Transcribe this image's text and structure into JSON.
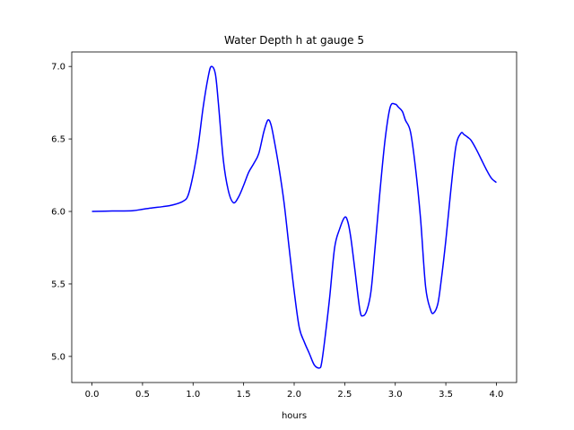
{
  "chart_data": {
    "type": "line",
    "title": "Water Depth h at gauge 5",
    "xlabel": "hours",
    "ylabel": "",
    "xlim": [
      -0.2,
      4.2
    ],
    "ylim": [
      4.82,
      7.1
    ],
    "xticks": [
      0.0,
      0.5,
      1.0,
      1.5,
      2.0,
      2.5,
      3.0,
      3.5,
      4.0
    ],
    "xtick_labels": [
      "0.0",
      "0.5",
      "1.0",
      "1.5",
      "2.0",
      "2.5",
      "3.0",
      "3.5",
      "4.0"
    ],
    "yticks": [
      5.0,
      5.5,
      6.0,
      6.5,
      7.0
    ],
    "ytick_labels": [
      "5.0",
      "5.5",
      "6.0",
      "6.5",
      "7.0"
    ],
    "grid": false,
    "legend": "none",
    "series": [
      {
        "color": "#0000ff",
        "x": [
          0.0,
          0.2,
          0.4,
          0.5,
          0.6,
          0.7,
          0.8,
          0.9,
          0.95,
          1.0,
          1.05,
          1.1,
          1.15,
          1.18,
          1.22,
          1.25,
          1.3,
          1.35,
          1.4,
          1.45,
          1.5,
          1.55,
          1.6,
          1.65,
          1.7,
          1.74,
          1.77,
          1.8,
          1.85,
          1.9,
          1.95,
          2.0,
          2.05,
          2.1,
          2.15,
          2.2,
          2.25,
          2.27,
          2.3,
          2.35,
          2.4,
          2.45,
          2.5,
          2.53,
          2.56,
          2.6,
          2.65,
          2.68,
          2.72,
          2.76,
          2.8,
          2.85,
          2.9,
          2.95,
          3.0,
          3.03,
          3.07,
          3.1,
          3.15,
          3.2,
          3.25,
          3.3,
          3.35,
          3.38,
          3.42,
          3.45,
          3.5,
          3.55,
          3.6,
          3.65,
          3.68,
          3.72,
          3.75,
          3.8,
          3.85,
          3.9,
          3.95,
          4.0
        ],
        "y": [
          6.0,
          6.003,
          6.005,
          6.015,
          6.025,
          6.033,
          6.045,
          6.07,
          6.11,
          6.25,
          6.45,
          6.72,
          6.93,
          7.0,
          6.95,
          6.75,
          6.35,
          6.14,
          6.06,
          6.1,
          6.18,
          6.27,
          6.33,
          6.4,
          6.55,
          6.63,
          6.6,
          6.5,
          6.3,
          6.06,
          5.75,
          5.45,
          5.2,
          5.1,
          5.02,
          4.94,
          4.92,
          4.95,
          5.1,
          5.4,
          5.75,
          5.88,
          5.96,
          5.93,
          5.82,
          5.6,
          5.32,
          5.28,
          5.32,
          5.45,
          5.75,
          6.15,
          6.5,
          6.72,
          6.74,
          6.72,
          6.69,
          6.63,
          6.55,
          6.3,
          5.95,
          5.48,
          5.32,
          5.3,
          5.36,
          5.5,
          5.8,
          6.15,
          6.45,
          6.54,
          6.53,
          6.51,
          6.49,
          6.43,
          6.36,
          6.29,
          6.23,
          6.2
        ]
      }
    ]
  }
}
